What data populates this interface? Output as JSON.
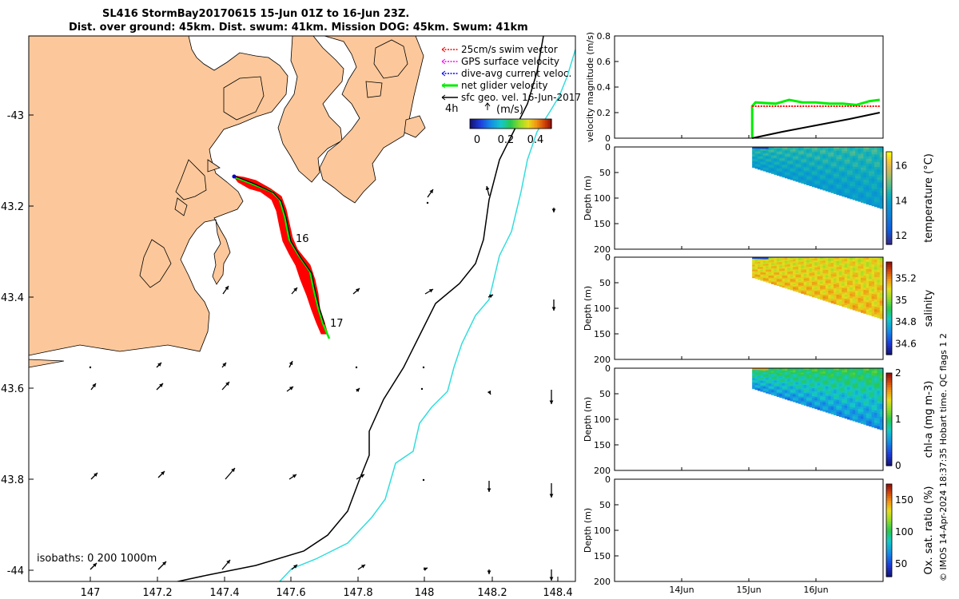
{
  "header": {
    "line1": "SL416 StormBay20170615 15-Jun 01Z to 16-Jun 23Z.",
    "line2": "Dist. over ground: 45km. Dist. swum: 41km. Mission DOG: 45km. Swum: 41km"
  },
  "colors": {
    "land": "#fcc89b",
    "track": "#ff0000",
    "net_velocity": "#00ee00",
    "isobath_200": "#000000",
    "isobath_1000": "#33dddd",
    "swim_vector": "#ff0000",
    "gps_velocity": "#ff00ff",
    "dive_avg": "#0000ff",
    "sfc_geo": "#000000"
  },
  "map": {
    "xticks": [
      "147",
      "147.2",
      "147.4",
      "147.6",
      "147.8",
      "148",
      "148.2",
      "148.4"
    ],
    "yticks": [
      "-43",
      "43.2",
      "43.4",
      "43.6",
      "43.8",
      "-44"
    ],
    "legend": [
      {
        "label": "25cm/s swim vector",
        "color": "#ff0000",
        "style": "dotted"
      },
      {
        "label": "GPS surface velocity",
        "color": "#ff00ff",
        "style": "dotted"
      },
      {
        "label": "dive-avg current veloc.",
        "color": "#0000ff",
        "style": "dotted"
      },
      {
        "label": "net glider velocity",
        "color": "#00ee00",
        "style": "thick"
      },
      {
        "label": "sfc geo. vel. 16-Jun-2017",
        "color": "#000000",
        "style": "solid"
      }
    ],
    "speed_label": "4h",
    "speed_unit": "(m/s)",
    "speed_colorbar_ticks": [
      "0",
      "0.2",
      "0.4"
    ],
    "day_labels": [
      "16",
      "17"
    ],
    "isobath_text": "isobaths: 0   200  1000m"
  },
  "chart_data": [
    {
      "type": "line",
      "title": "",
      "ylabel": "velocity magnitude (m/s)",
      "ylim": [
        0,
        0.8
      ],
      "yticks": [
        "0",
        "0.2",
        "0.4",
        "0.6",
        "0.8"
      ],
      "series": [
        {
          "name": "net glider velocity",
          "color": "#00ee00",
          "days": [
            15.05,
            15.05,
            15.1,
            15.4,
            15.6,
            15.8,
            16.0,
            16.2,
            16.4,
            16.6,
            16.8,
            16.95
          ],
          "values": [
            0.0,
            0.25,
            0.28,
            0.27,
            0.3,
            0.28,
            0.28,
            0.27,
            0.27,
            0.26,
            0.29,
            0.3
          ]
        },
        {
          "name": "swim vector",
          "color": "#ff0000",
          "days": [
            15.05,
            16.95
          ],
          "values": [
            0.25,
            0.25
          ]
        },
        {
          "name": "sfc geo. vel.",
          "color": "#000000",
          "days": [
            15.05,
            15.5,
            16.0,
            16.5,
            16.95
          ],
          "values": [
            0.0,
            0.05,
            0.1,
            0.15,
            0.2
          ]
        }
      ]
    },
    {
      "type": "heatmap",
      "ylabel": "Depth (m)",
      "cbar_label": "temperature (°C)",
      "ylim": [
        0,
        200
      ],
      "yticks": [
        "0",
        "50",
        "100",
        "150",
        "200"
      ],
      "clim": [
        11.5,
        16.8
      ],
      "cbar_ticks": [
        "12",
        "14",
        "16"
      ],
      "profile_days": [
        15.05,
        16.95
      ],
      "max_depth": [
        40,
        120
      ],
      "surface_value": 14.6,
      "deep_value": 13.8
    },
    {
      "type": "heatmap",
      "ylabel": "Depth (m)",
      "cbar_label": "salinity",
      "ylim": [
        0,
        200
      ],
      "yticks": [
        "0",
        "50",
        "100",
        "150",
        "200"
      ],
      "clim": [
        34.5,
        35.35
      ],
      "cbar_ticks": [
        "34.6",
        "34.8",
        "35",
        "35.2"
      ],
      "profile_days": [
        15.05,
        16.95
      ],
      "max_depth": [
        40,
        120
      ],
      "surface_value": 35.1,
      "deep_value": 35.15
    },
    {
      "type": "heatmap",
      "ylabel": "Depth (m)",
      "cbar_label": "chl-a (mg m-3)",
      "ylim": [
        0,
        200
      ],
      "yticks": [
        "0",
        "50",
        "100",
        "150",
        "200"
      ],
      "clim": [
        0,
        2
      ],
      "cbar_ticks": [
        "0",
        "1",
        "2"
      ],
      "profile_days": [
        15.05,
        16.95
      ],
      "max_depth": [
        40,
        120
      ],
      "surface_value": 1.0,
      "deep_value": 0.5
    },
    {
      "type": "heatmap",
      "ylabel": "Depth (m)",
      "cbar_label": "Ox. sat. ratio (%)",
      "ylim": [
        0,
        200
      ],
      "yticks": [
        "0",
        "50",
        "100",
        "150",
        "200"
      ],
      "clim": [
        30,
        175
      ],
      "cbar_ticks": [
        "50",
        "100",
        "150"
      ],
      "profile_days": [],
      "max_depth": []
    }
  ],
  "time_axis": {
    "labels": [
      "14Jun",
      "15Jun",
      "16Jun"
    ],
    "xlim_days": [
      13.0,
      17.0
    ],
    "label_days": [
      14,
      15,
      16
    ]
  },
  "footer": "© IMOS 14-Apr-2024 18:37:35 Hobart time. QC flags 1  2"
}
